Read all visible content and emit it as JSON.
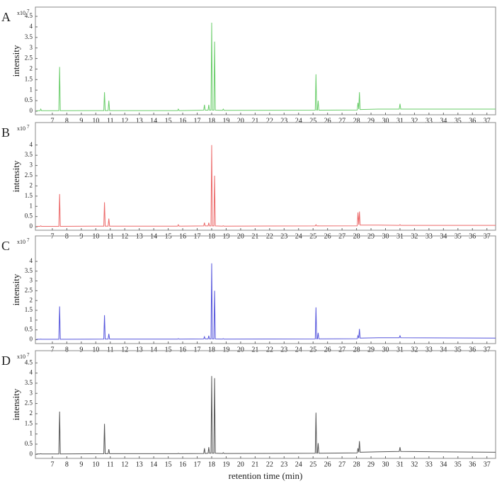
{
  "chart_data": [
    {
      "type": "line",
      "panel_label": "A",
      "multiplier": "x10",
      "multiplier_exponent": "7",
      "y_label": "intensity",
      "color": "#6acd6a",
      "x": [
        5.9,
        6.15,
        6.2,
        6.25,
        7.45,
        7.5,
        7.55,
        10.55,
        10.6,
        10.65,
        10.85,
        10.9,
        10.95,
        15.65,
        15.7,
        15.75,
        17.45,
        17.5,
        17.55,
        17.75,
        17.8,
        17.85,
        17.95,
        18.0,
        18.05,
        18.15,
        18.2,
        18.25,
        18.75,
        18.8,
        18.85,
        25.15,
        25.2,
        25.25,
        25.3,
        25.35,
        25.4,
        28.05,
        28.1,
        28.15,
        28.2,
        28.25,
        29.5,
        30.95,
        31.0,
        31.05,
        37.6
      ],
      "values": [
        0.02,
        0.02,
        0.1,
        0.02,
        0.02,
        2.1,
        0.02,
        0.03,
        0.9,
        0.03,
        0.03,
        0.5,
        0.03,
        0.03,
        0.1,
        0.03,
        0.05,
        0.3,
        0.05,
        0.05,
        0.3,
        0.05,
        0.05,
        4.2,
        0.05,
        0.05,
        3.3,
        0.05,
        0.04,
        0.1,
        0.04,
        0.05,
        1.75,
        0.05,
        0.05,
        0.5,
        0.05,
        0.06,
        0.4,
        0.1,
        0.9,
        0.08,
        0.1,
        0.1,
        0.35,
        0.1,
        0.1
      ],
      "xlim": [
        5.83,
        37.6
      ],
      "ylim": [
        -0.17,
        4.94
      ],
      "xticks": [
        7,
        8,
        9,
        10,
        11,
        12,
        13,
        14,
        15,
        16,
        17,
        18,
        19,
        20,
        21,
        22,
        23,
        24,
        25,
        26,
        27,
        28,
        29,
        30,
        31,
        32,
        33,
        34,
        35,
        36,
        37
      ],
      "yticks": [
        0,
        0.5,
        1,
        1.5,
        2,
        2.5,
        3,
        3.5,
        4,
        4.5
      ]
    },
    {
      "type": "line",
      "panel_label": "B",
      "multiplier": "x10",
      "multiplier_exponent": "7",
      "y_label": "intensity",
      "color": "#ec6a6a",
      "x": [
        5.9,
        6.15,
        6.2,
        6.25,
        7.45,
        7.5,
        7.55,
        10.55,
        10.6,
        10.65,
        10.85,
        10.9,
        10.95,
        15.65,
        15.7,
        15.75,
        17.45,
        17.5,
        17.55,
        17.75,
        17.8,
        17.85,
        17.95,
        18.0,
        18.05,
        18.15,
        18.2,
        18.25,
        18.75,
        18.8,
        18.85,
        25.15,
        25.2,
        25.25,
        25.3,
        25.35,
        25.4,
        28.05,
        28.1,
        28.15,
        28.2,
        28.25,
        29.5,
        30.95,
        31.0,
        31.05,
        37.6
      ],
      "values": [
        0.02,
        0.02,
        0.05,
        0.02,
        0.02,
        1.6,
        0.02,
        0.03,
        1.2,
        0.03,
        0.03,
        0.4,
        0.03,
        0.03,
        0.1,
        0.03,
        0.04,
        0.2,
        0.04,
        0.04,
        0.2,
        0.04,
        0.04,
        4.0,
        0.04,
        0.04,
        2.5,
        0.04,
        0.03,
        0.05,
        0.03,
        0.04,
        0.1,
        0.04,
        0.04,
        0.05,
        0.04,
        0.05,
        0.7,
        0.1,
        0.75,
        0.08,
        0.08,
        0.07,
        0.1,
        0.07,
        0.07
      ],
      "xlim": [
        5.83,
        37.6
      ],
      "ylim": [
        -0.17,
        5.1
      ],
      "xticks": [
        7,
        8,
        9,
        10,
        11,
        12,
        13,
        14,
        15,
        16,
        17,
        18,
        19,
        20,
        21,
        22,
        23,
        24,
        25,
        26,
        27,
        28,
        29,
        30,
        31,
        32,
        33,
        34,
        35,
        36,
        37
      ],
      "yticks": [
        0,
        0.5,
        1,
        1.5,
        2,
        2.5,
        3,
        3.5,
        4
      ]
    },
    {
      "type": "line",
      "panel_label": "C",
      "multiplier": "x10",
      "multiplier_exponent": "7",
      "y_label": "intensity",
      "color": "#5656dc",
      "x": [
        5.9,
        6.15,
        6.2,
        6.25,
        7.45,
        7.5,
        7.55,
        10.55,
        10.6,
        10.65,
        10.85,
        10.9,
        10.95,
        15.65,
        15.7,
        15.75,
        17.45,
        17.5,
        17.55,
        17.75,
        17.8,
        17.85,
        17.95,
        18.0,
        18.05,
        18.15,
        18.2,
        18.25,
        18.75,
        18.8,
        18.85,
        25.15,
        25.2,
        25.25,
        25.3,
        25.35,
        25.4,
        28.05,
        28.1,
        28.15,
        28.2,
        28.25,
        29.5,
        30.95,
        31.0,
        31.05,
        37.6
      ],
      "values": [
        0.02,
        0.02,
        0.03,
        0.02,
        0.02,
        1.7,
        0.02,
        0.03,
        1.25,
        0.03,
        0.03,
        0.3,
        0.03,
        0.03,
        0.05,
        0.03,
        0.04,
        0.15,
        0.04,
        0.04,
        0.2,
        0.04,
        0.04,
        3.9,
        0.04,
        0.04,
        2.5,
        0.04,
        0.03,
        0.05,
        0.03,
        0.04,
        1.65,
        0.04,
        0.04,
        0.35,
        0.04,
        0.05,
        0.2,
        0.08,
        0.55,
        0.08,
        0.1,
        0.1,
        0.2,
        0.1,
        0.08
      ],
      "xlim": [
        5.83,
        37.6
      ],
      "ylim": [
        -0.2,
        5.3
      ],
      "xticks": [
        7,
        8,
        9,
        10,
        11,
        12,
        13,
        14,
        15,
        16,
        17,
        18,
        19,
        20,
        21,
        22,
        23,
        24,
        25,
        26,
        27,
        28,
        29,
        30,
        31,
        32,
        33,
        34,
        35,
        36,
        37
      ],
      "yticks": [
        0,
        0.5,
        1,
        1.5,
        2,
        2.5,
        3,
        3.5,
        4
      ]
    },
    {
      "type": "line",
      "panel_label": "D",
      "multiplier": "x10",
      "multiplier_exponent": "7",
      "y_label": "intensity",
      "x_label": "retention time (min)",
      "color": "#555555",
      "x": [
        5.9,
        6.15,
        6.2,
        6.25,
        7.45,
        7.5,
        7.55,
        10.55,
        10.6,
        10.65,
        10.85,
        10.9,
        10.95,
        15.65,
        15.7,
        15.75,
        17.45,
        17.5,
        17.55,
        17.75,
        17.8,
        17.85,
        17.95,
        18.0,
        18.05,
        18.15,
        18.2,
        18.25,
        18.75,
        18.8,
        18.85,
        25.15,
        25.2,
        25.25,
        25.3,
        25.35,
        25.4,
        28.05,
        28.1,
        28.15,
        28.2,
        28.25,
        29.5,
        30.95,
        31.0,
        31.05,
        37.6
      ],
      "values": [
        0.02,
        0.02,
        0.03,
        0.02,
        0.02,
        2.1,
        0.02,
        0.03,
        1.5,
        0.03,
        0.03,
        0.25,
        0.03,
        0.03,
        0.05,
        0.03,
        0.04,
        0.3,
        0.04,
        0.05,
        0.35,
        0.05,
        0.05,
        3.85,
        0.05,
        0.05,
        3.75,
        0.05,
        0.04,
        0.08,
        0.04,
        0.05,
        2.05,
        0.05,
        0.05,
        0.55,
        0.05,
        0.07,
        0.3,
        0.1,
        0.65,
        0.1,
        0.12,
        0.14,
        0.35,
        0.14,
        0.1
      ],
      "xlim": [
        5.83,
        37.6
      ],
      "ylim": [
        -0.2,
        5.1
      ],
      "xticks": [
        7,
        8,
        9,
        10,
        11,
        12,
        13,
        14,
        15,
        16,
        17,
        18,
        19,
        20,
        21,
        22,
        23,
        24,
        25,
        26,
        27,
        28,
        29,
        30,
        31,
        32,
        33,
        34,
        35,
        36,
        37
      ],
      "yticks": [
        0,
        0.5,
        1,
        1.5,
        2,
        2.5,
        3,
        3.5,
        4,
        4.5
      ]
    }
  ]
}
